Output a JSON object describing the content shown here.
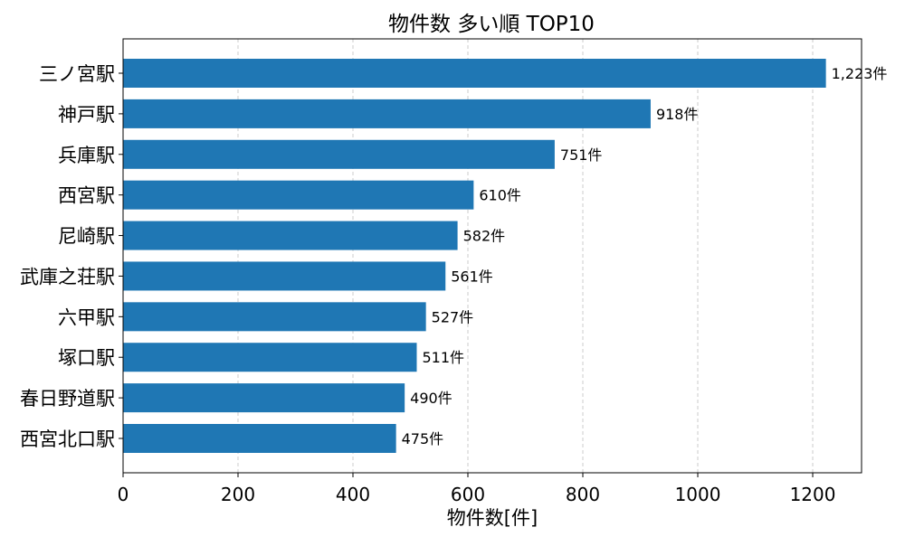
{
  "chart_data": {
    "type": "bar",
    "orientation": "horizontal",
    "title": "物件数 多い順 TOP10",
    "xlabel": "物件数[件]",
    "ylabel": "",
    "categories": [
      "三ノ宮駅",
      "神戸駅",
      "兵庫駅",
      "西宮駅",
      "尼崎駅",
      "武庫之荘駅",
      "六甲駅",
      "塚口駅",
      "春日野道駅",
      "西宮北口駅"
    ],
    "values": [
      1223,
      918,
      751,
      610,
      582,
      561,
      527,
      511,
      490,
      475
    ],
    "data_labels": [
      "1,223件",
      "918件",
      "751件",
      "610件",
      "582件",
      "561件",
      "527件",
      "511件",
      "490件",
      "475件"
    ],
    "xlim": [
      0,
      1285
    ],
    "xticks": [
      0,
      200,
      400,
      600,
      800,
      1000,
      1200
    ],
    "xtick_labels": [
      "0",
      "200",
      "400",
      "600",
      "800",
      "1000",
      "1200"
    ],
    "grid": "x, dashed",
    "bar_color": "#1f77b4"
  }
}
